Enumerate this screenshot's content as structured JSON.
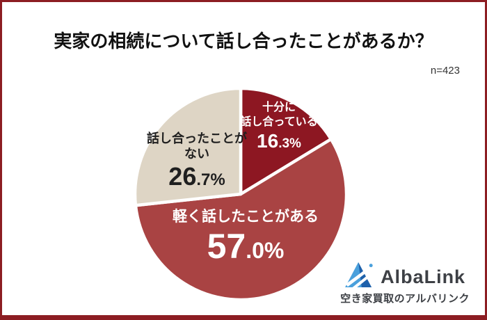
{
  "header": {
    "title": "実家の相続について話し合ったことがあるか？",
    "sample_label": "n=423"
  },
  "chart_data": {
    "type": "pie",
    "title": "実家の相続について話し合ったことがあるか？",
    "sample_size": 423,
    "start_angle_deg": 0,
    "direction": "clockwise",
    "legend_position": "labels-on-slices",
    "slices": [
      {
        "label": "十分に話し合っている",
        "value": 16.3,
        "display": "16.3%",
        "label_line1": "十分に",
        "label_line2": "話し合っている",
        "pct_int": "16",
        "pct_small": ".3%",
        "color": "#8d1722",
        "text_color": "#ffffff"
      },
      {
        "label": "軽く話したことがある",
        "value": 57.0,
        "display": "57.0%",
        "label_line1": "軽く話したことがある",
        "label_line2": "",
        "pct_int": "57",
        "pct_small": ".0%",
        "color": "#a94343",
        "text_color": "#ffffff"
      },
      {
        "label": "話し合ったことがない",
        "value": 26.7,
        "display": "26.7%",
        "label_line1": "話し合ったことが",
        "label_line2": "ない",
        "pct_int": "26",
        "pct_small": ".7%",
        "color": "#ded5c5",
        "text_color": "#1f1f1f"
      }
    ]
  },
  "footer_logo": {
    "brand": "AlbaLink",
    "tagline": "空き家買取のアルバリンク",
    "icon": "albalink-triangle-mountain-icon",
    "icon_colors": {
      "light_blue": "#4aa0dc",
      "dark_blue": "#1e61ab",
      "stripe": "#ffffff"
    },
    "text_color": "#3d4045"
  },
  "frame": {
    "border_color": "#8c1d22",
    "background": "#ffffff"
  }
}
